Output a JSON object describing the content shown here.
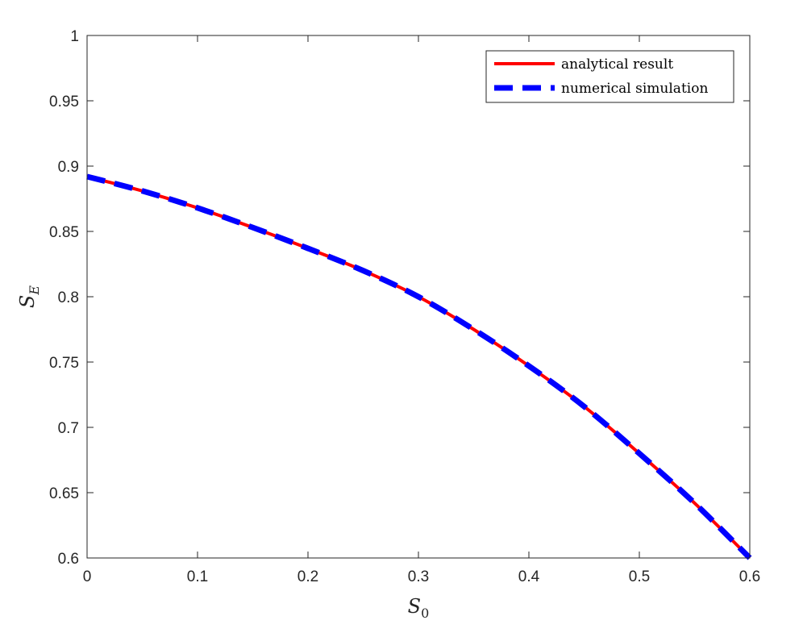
{
  "chart_data": {
    "type": "line",
    "xlabel": {
      "base": "S",
      "sub": "0"
    },
    "ylabel": {
      "base": "S",
      "sub": "E"
    },
    "xlim": [
      0,
      0.6
    ],
    "ylim": [
      0.6,
      1
    ],
    "xticks": [
      "0",
      "0.1",
      "0.2",
      "0.3",
      "0.4",
      "0.5",
      "0.6"
    ],
    "yticks": [
      "0.6",
      "0.65",
      "0.7",
      "0.75",
      "0.8",
      "0.85",
      "0.9",
      "0.95",
      "1"
    ],
    "grid": false,
    "legend_position": "top-right",
    "series": [
      {
        "name": "analytical result",
        "style": "solid",
        "color": "#ff0000",
        "x": [
          0,
          0.05,
          0.1,
          0.15,
          0.2,
          0.25,
          0.3,
          0.35,
          0.4,
          0.45,
          0.5,
          0.55,
          0.6
        ],
        "y": [
          0.892,
          0.881,
          0.868,
          0.853,
          0.837,
          0.82,
          0.8,
          0.775,
          0.747,
          0.716,
          0.68,
          0.642,
          0.6
        ]
      },
      {
        "name": "numerical simulation",
        "style": "dashed",
        "color": "#0000ff",
        "x": [
          0,
          0.05,
          0.1,
          0.15,
          0.2,
          0.25,
          0.3,
          0.35,
          0.4,
          0.45,
          0.5,
          0.55,
          0.6
        ],
        "y": [
          0.892,
          0.881,
          0.868,
          0.853,
          0.837,
          0.82,
          0.8,
          0.775,
          0.747,
          0.716,
          0.68,
          0.642,
          0.6
        ]
      }
    ]
  }
}
